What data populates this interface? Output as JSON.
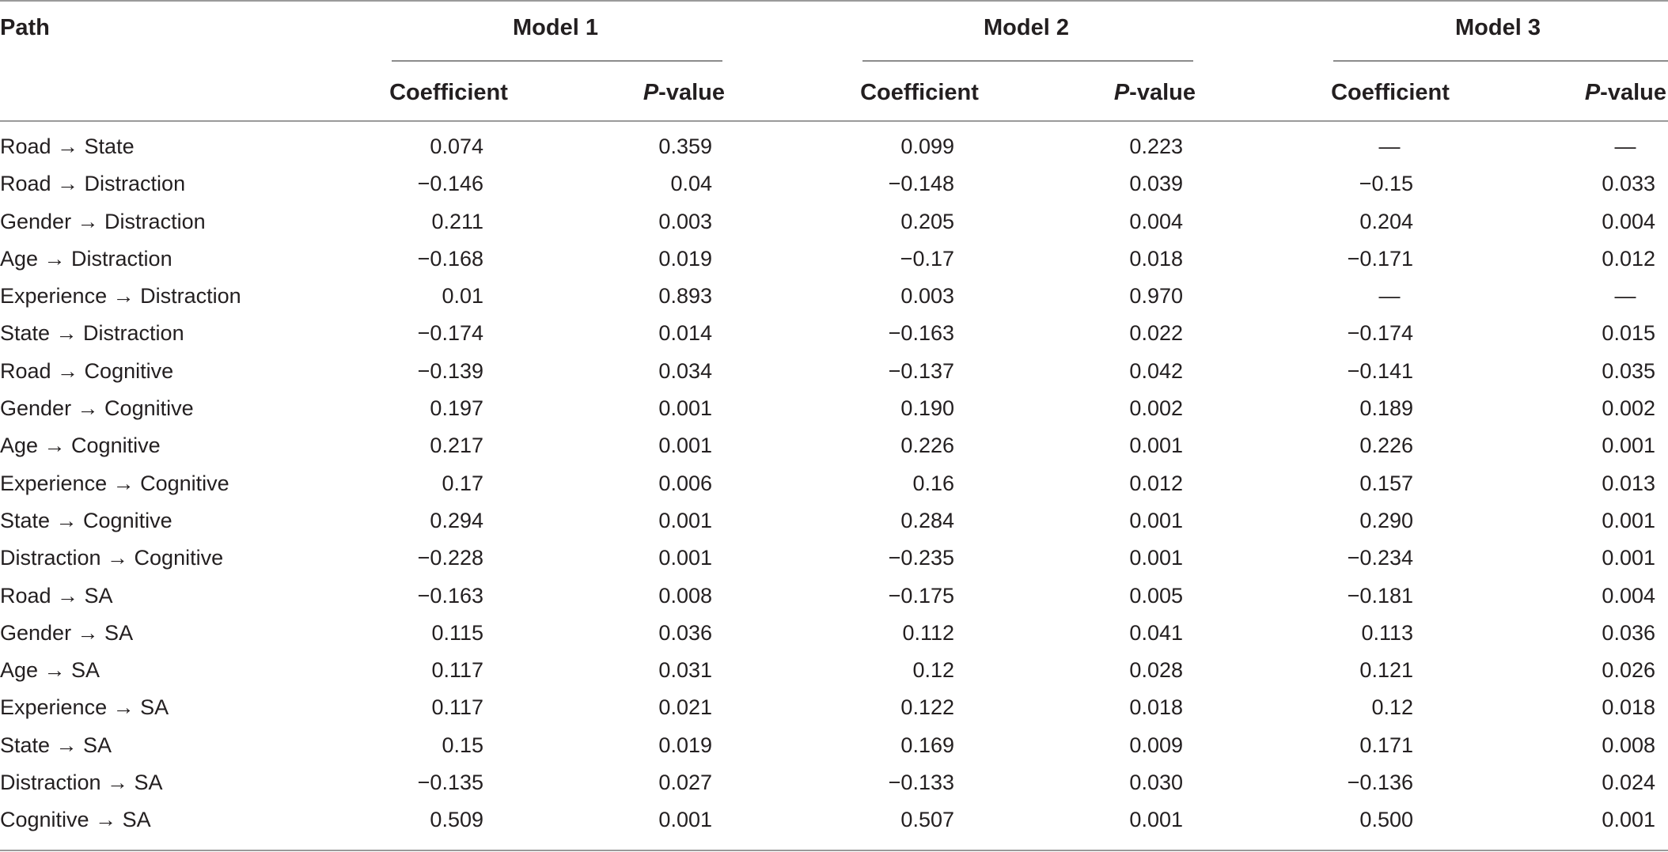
{
  "table": {
    "path_header": "Path",
    "models": [
      "Model 1",
      "Model 2",
      "Model 3"
    ],
    "coef_header": "Coefficient",
    "p_header_italic": "P",
    "p_header_rest": "-value",
    "rows": [
      {
        "path": "Road → State",
        "m1c": "0.074",
        "m1p": "0.359",
        "m2c": "0.099",
        "m2p": "0.223",
        "m3c": "—",
        "m3p": "—"
      },
      {
        "path": "Road → Distraction",
        "m1c": "−0.146",
        "m1p": "0.04",
        "m2c": "−0.148",
        "m2p": "0.039",
        "m3c": "−0.15",
        "m3p": "0.033"
      },
      {
        "path": "Gender → Distraction",
        "m1c": "0.211",
        "m1p": "0.003",
        "m2c": "0.205",
        "m2p": "0.004",
        "m3c": "0.204",
        "m3p": "0.004"
      },
      {
        "path": "Age → Distraction",
        "m1c": "−0.168",
        "m1p": "0.019",
        "m2c": "−0.17",
        "m2p": "0.018",
        "m3c": "−0.171",
        "m3p": "0.012"
      },
      {
        "path": "Experience → Distraction",
        "m1c": "0.01",
        "m1p": "0.893",
        "m2c": "0.003",
        "m2p": "0.970",
        "m3c": "—",
        "m3p": "—"
      },
      {
        "path": "State → Distraction",
        "m1c": "−0.174",
        "m1p": "0.014",
        "m2c": "−0.163",
        "m2p": "0.022",
        "m3c": "−0.174",
        "m3p": "0.015"
      },
      {
        "path": "Road → Cognitive",
        "m1c": "−0.139",
        "m1p": "0.034",
        "m2c": "−0.137",
        "m2p": "0.042",
        "m3c": "−0.141",
        "m3p": "0.035"
      },
      {
        "path": "Gender → Cognitive",
        "m1c": "0.197",
        "m1p": "0.001",
        "m2c": "0.190",
        "m2p": "0.002",
        "m3c": "0.189",
        "m3p": "0.002"
      },
      {
        "path": "Age → Cognitive",
        "m1c": "0.217",
        "m1p": "0.001",
        "m2c": "0.226",
        "m2p": "0.001",
        "m3c": "0.226",
        "m3p": "0.001"
      },
      {
        "path": "Experience → Cognitive",
        "m1c": "0.17",
        "m1p": "0.006",
        "m2c": "0.16",
        "m2p": "0.012",
        "m3c": "0.157",
        "m3p": "0.013"
      },
      {
        "path": "State → Cognitive",
        "m1c": "0.294",
        "m1p": "0.001",
        "m2c": "0.284",
        "m2p": "0.001",
        "m3c": "0.290",
        "m3p": "0.001"
      },
      {
        "path": "Distraction → Cognitive",
        "m1c": "−0.228",
        "m1p": "0.001",
        "m2c": "−0.235",
        "m2p": "0.001",
        "m3c": "−0.234",
        "m3p": "0.001"
      },
      {
        "path": "Road → SA",
        "m1c": "−0.163",
        "m1p": "0.008",
        "m2c": "−0.175",
        "m2p": "0.005",
        "m3c": "−0.181",
        "m3p": "0.004"
      },
      {
        "path": "Gender → SA",
        "m1c": "0.115",
        "m1p": "0.036",
        "m2c": "0.112",
        "m2p": "0.041",
        "m3c": "0.113",
        "m3p": "0.036"
      },
      {
        "path": "Age → SA",
        "m1c": "0.117",
        "m1p": "0.031",
        "m2c": "0.12",
        "m2p": "0.028",
        "m3c": "0.121",
        "m3p": "0.026"
      },
      {
        "path": "Experience → SA",
        "m1c": "0.117",
        "m1p": "0.021",
        "m2c": "0.122",
        "m2p": "0.018",
        "m3c": "0.12",
        "m3p": "0.018"
      },
      {
        "path": "State → SA",
        "m1c": "0.15",
        "m1p": "0.019",
        "m2c": "0.169",
        "m2p": "0.009",
        "m3c": "0.171",
        "m3p": "0.008"
      },
      {
        "path": "Distraction → SA",
        "m1c": "−0.135",
        "m1p": "0.027",
        "m2c": "−0.133",
        "m2p": "0.030",
        "m3c": "−0.136",
        "m3p": "0.024"
      },
      {
        "path": "Cognitive → SA",
        "m1c": "0.509",
        "m1p": "0.001",
        "m2c": "0.507",
        "m2p": "0.001",
        "m3c": "0.500",
        "m3p": "0.001"
      }
    ]
  }
}
